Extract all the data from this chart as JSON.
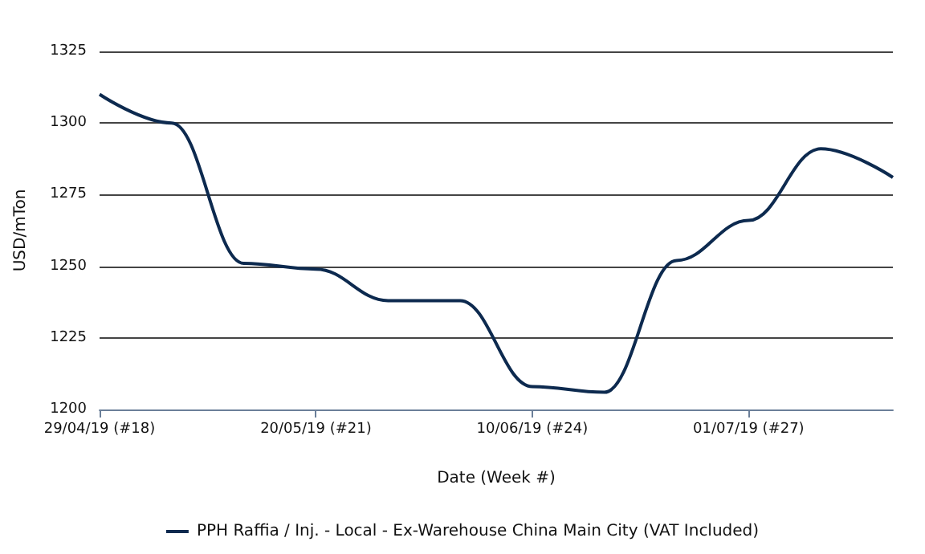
{
  "chart_data": {
    "type": "line",
    "xlabel": "Date (Week #)",
    "ylabel": "USD/mTon",
    "categories": [
      "29/04/19 (#18)",
      null,
      null,
      "20/05/19 (#21)",
      null,
      null,
      "10/06/19 (#24)",
      null,
      null,
      "01/07/19 (#27)",
      null,
      null
    ],
    "series": [
      {
        "name": "PPH Raffia / Inj. - Local - Ex-Warehouse China Main City (VAT Included)",
        "color": "#0d2a4f",
        "values": [
          1310,
          1300,
          1251,
          1249,
          1238,
          1238,
          1208,
          1206,
          1252,
          1266,
          1291,
          1281
        ]
      }
    ],
    "ylim": [
      1200,
      1325
    ],
    "yticks": [
      1200,
      1225,
      1250,
      1275,
      1300,
      1325
    ],
    "grid": "y",
    "legend": "bottom",
    "marker": "none",
    "line_style": "solid"
  }
}
